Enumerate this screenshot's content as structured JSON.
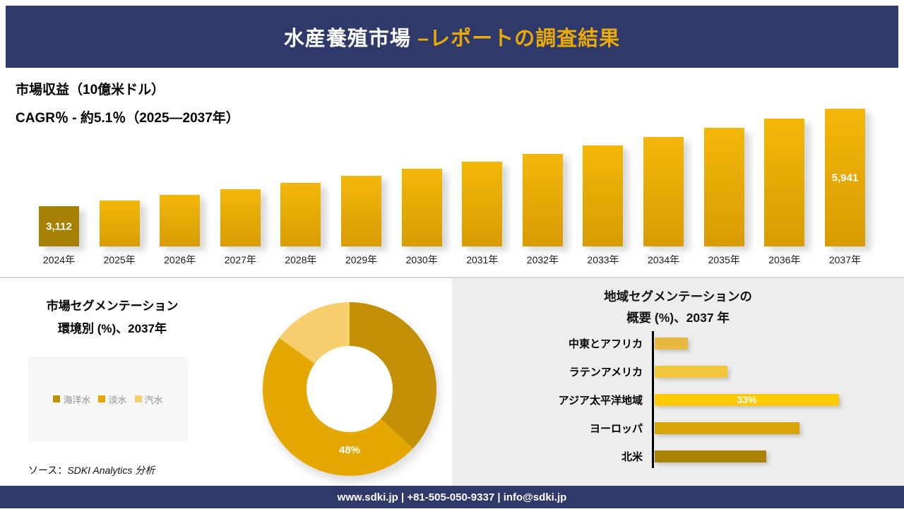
{
  "colors": {
    "navy": "#303A6A",
    "accent_gold": "#EAAA07",
    "bar_gold_top": "#F3B70A",
    "bar_gold_bottom": "#D89C03",
    "first_bar_gold": "#A68104"
  },
  "header": {
    "title_prefix": "水産養殖市場 ",
    "title_accent": "–レポートの調査結果"
  },
  "revenue": {
    "title": "市場収益（10億米ドル）",
    "cagr_line": "CAGR％ - 約5.1％（2025―2037年）"
  },
  "segmentation": {
    "title_line1": "市場セグメンテーション",
    "title_line2": "環境別 (%)、2037年",
    "donut_label": "48%"
  },
  "regional": {
    "title_line1": "地域セグメンテーションの",
    "title_line2": "概要 (%)、2037 年"
  },
  "source": {
    "prefix": "ソース：",
    "text": "SDKI Analytics 分析"
  },
  "footer": {
    "contact": "www.sdki.jp | +81-505-050-9337 | info@sdki.jp"
  },
  "chart_data": [
    {
      "type": "bar",
      "title": "市場収益（10億米ドル）",
      "subtitle": "CAGR％ - 約5.1％（2025―2037年）",
      "categories": [
        "2024年",
        "2025年",
        "2026年",
        "2027年",
        "2028年",
        "2029年",
        "2030年",
        "2031年",
        "2032年",
        "2033年",
        "2034年",
        "2035年",
        "2036年",
        "2037年"
      ],
      "values": [
        3112,
        3271,
        3438,
        3613,
        3797,
        3991,
        4195,
        4409,
        4634,
        4870,
        5118,
        5379,
        5654,
        5941
      ],
      "value_labels": {
        "0": "3,112",
        "13": "5,941"
      },
      "ylabel": "市場収益（10億米ドル）",
      "bar_color_top": "#F3B70A",
      "bar_color_bottom": "#D89C03",
      "first_bar_color": "#A68104",
      "grid": false
    },
    {
      "type": "pie",
      "title": "市場セグメンテーション 環境別 (%)、2037年",
      "labels": [
        "海洋水",
        "淡水",
        "汽水"
      ],
      "values": [
        37,
        48,
        15
      ],
      "colors": [
        "#C28F05",
        "#E5A802",
        "#F6CE6E"
      ],
      "shown_label": {
        "slice": "淡水",
        "text": "48%"
      },
      "legend_position": "left"
    },
    {
      "type": "bar",
      "orientation": "horizontal",
      "title": "地域セグメンテーションの概要 (%)、2037 年",
      "categories": [
        "中東とアフリカ",
        "ラテンアメリカ",
        "アジア太平洋地域",
        "ヨーロッパ",
        "北米"
      ],
      "values": [
        6,
        13,
        33,
        26,
        20
      ],
      "colors": [
        "#E9B93F",
        "#F3C63A",
        "#FFC904",
        "#D9A506",
        "#A98204"
      ],
      "shown_label": {
        "category": "アジア太平洋地域",
        "text": "33%"
      },
      "xlim": [
        0,
        35
      ],
      "grid": false
    }
  ]
}
